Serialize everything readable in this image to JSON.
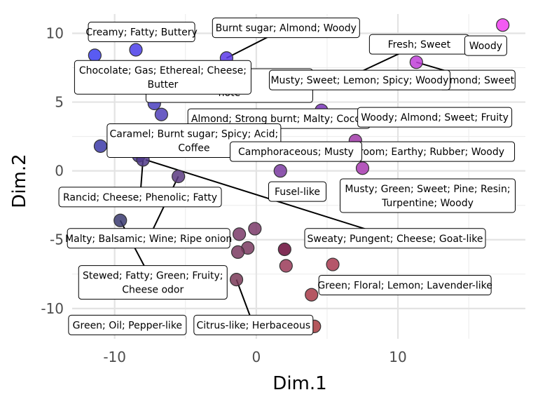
{
  "chart_data": {
    "type": "scatter",
    "title": "",
    "xlabel": "Dim.1",
    "ylabel": "Dim.2",
    "xlim": [
      -13,
      19
    ],
    "ylim": [
      -12.2,
      11.4
    ],
    "xticks": [
      -10,
      0,
      10
    ],
    "yticks": [
      -10,
      -5,
      0,
      5,
      10
    ],
    "grid": true,
    "legend": "none",
    "points": [
      {
        "x": -11.4,
        "y": 8.4,
        "color": "#3c3ef0"
      },
      {
        "x": -8.5,
        "y": 8.8,
        "color": "#4a3de8"
      },
      {
        "x": -2.1,
        "y": 8.2,
        "color": "#5a38e8"
      },
      {
        "x": 17.4,
        "y": 10.6,
        "color": "#f03ef0"
      },
      {
        "x": 11.3,
        "y": 7.9,
        "color": "#c040d8"
      },
      {
        "x": 3.0,
        "y": 6.3,
        "color": "#7a3ac8"
      },
      {
        "x": -7.2,
        "y": 4.9,
        "color": "#4a40c0"
      },
      {
        "x": -6.7,
        "y": 4.1,
        "color": "#5040b8"
      },
      {
        "x": 4.6,
        "y": 4.4,
        "color": "#7a35b8"
      },
      {
        "x": 5.1,
        "y": 4.0,
        "color": "#8a38b8"
      },
      {
        "x": 6.3,
        "y": 3.6,
        "color": "#a03ab8"
      },
      {
        "x": 7.0,
        "y": 2.2,
        "color": "#a03aa8"
      },
      {
        "x": 7.5,
        "y": 0.2,
        "color": "#a83ab0"
      },
      {
        "x": 1.7,
        "y": 0.0,
        "color": "#7a3aa0"
      },
      {
        "x": -11.0,
        "y": 1.8,
        "color": "#3c3aa8"
      },
      {
        "x": -8.3,
        "y": 1.1,
        "color": "#4a3a90"
      },
      {
        "x": -8.0,
        "y": 0.8,
        "color": "#503a88"
      },
      {
        "x": -5.5,
        "y": -0.4,
        "color": "#5a3a80"
      },
      {
        "x": -9.6,
        "y": -3.6,
        "color": "#3a3a70"
      },
      {
        "x": -1.2,
        "y": -4.6,
        "color": "#7a3a68"
      },
      {
        "x": -0.1,
        "y": -4.2,
        "color": "#7a3a68"
      },
      {
        "x": -0.6,
        "y": -5.6,
        "color": "#7a3a60"
      },
      {
        "x": -1.3,
        "y": -5.9,
        "color": "#7a3a60"
      },
      {
        "x": 2.0,
        "y": -5.7,
        "color": "#6a0a38"
      },
      {
        "x": 2.1,
        "y": -6.9,
        "color": "#9a3a58"
      },
      {
        "x": 5.4,
        "y": -6.8,
        "color": "#a83a50"
      },
      {
        "x": 3.9,
        "y": -9.0,
        "color": "#a83a48"
      },
      {
        "x": -1.4,
        "y": -7.9,
        "color": "#7a3a58"
      },
      {
        "x": 4.1,
        "y": -11.3,
        "color": "#a83a40"
      }
    ],
    "labels": [
      {
        "text": [
          "Creamy; Fatty; Buttery"
        ],
        "cx": -8.1,
        "cy": 10.1,
        "w": 152,
        "h": 28,
        "line": null
      },
      {
        "text": [
          "Burnt sugar; Almond; Woody"
        ],
        "cx": 2.1,
        "cy": 10.4,
        "w": 210,
        "h": 28,
        "line": [
          -2.1,
          8.2
        ]
      },
      {
        "text": [
          "Fresh; Sweet"
        ],
        "cx": 11.5,
        "cy": 9.2,
        "w": 142,
        "h": 28,
        "line": [
          5.9,
          6.5
        ]
      },
      {
        "text": [
          "Woody"
        ],
        "cx": 16.2,
        "cy": 9.1,
        "w": 60,
        "h": 28,
        "line": null
      },
      {
        "text": [
          "Almond; Sweet"
        ],
        "cx": 15.6,
        "cy": 6.6,
        "w": 108,
        "h": 28,
        "line": [
          11.3,
          7.9
        ]
      },
      {
        "text": [
          "Caramel",
          "note"
        ],
        "cx": -1.9,
        "cy": 6.2,
        "w": 238,
        "h": 48,
        "line": null
      },
      {
        "text": [
          "Chocolate; Gas; Ethereal; Cheese;",
          "Butter"
        ],
        "cx": -6.6,
        "cy": 6.8,
        "w": 252,
        "h": 48,
        "line": null
      },
      {
        "text": [
          "Musty; Sweet; Lemon; Spicy; Woody"
        ],
        "cx": 7.3,
        "cy": 6.6,
        "w": 258,
        "h": 28,
        "line": null
      },
      {
        "text": [
          "Almond; Strong burnt; Malty; Cocoa"
        ],
        "cx": 1.6,
        "cy": 3.8,
        "w": 260,
        "h": 28,
        "line": null
      },
      {
        "text": [
          "Woody; Almond; Sweet; Fruity"
        ],
        "cx": 12.6,
        "cy": 3.9,
        "w": 220,
        "h": 28,
        "line": null
      },
      {
        "text": [
          "Caramel; Burnt sugar; Spicy; Acid;",
          "Coffee"
        ],
        "cx": -4.4,
        "cy": 2.2,
        "w": 248,
        "h": 48,
        "line": null
      },
      {
        "text": [
          "room; Earthy; Rubber; Woody"
        ],
        "cx": 12.4,
        "cy": 1.4,
        "w": 236,
        "h": 28,
        "line": null
      },
      {
        "text": [
          "Camphoraceous; Musty"
        ],
        "cx": 2.8,
        "cy": 1.4,
        "w": 188,
        "h": 28,
        "line": null
      },
      {
        "text": [
          "Fusel-like"
        ],
        "cx": 2.9,
        "cy": -1.5,
        "w": 82,
        "h": 28,
        "line": null
      },
      {
        "text": [
          "Musty; Green; Sweet; Pine; Resin;",
          "Turpentine; Woody"
        ],
        "cx": 12.1,
        "cy": -1.8,
        "w": 250,
        "h": 48,
        "line": null
      },
      {
        "text": [
          "Rancid; Cheese; Phenolic; Fatty"
        ],
        "cx": -8.2,
        "cy": -1.9,
        "w": 232,
        "h": 28,
        "line": [
          -8.0,
          0.8
        ]
      },
      {
        "text": [
          "Sweaty; Pungent; Cheese; Goat-like"
        ],
        "cx": 9.8,
        "cy": -4.9,
        "w": 258,
        "h": 28,
        "line": [
          -7.8,
          0.8
        ]
      },
      {
        "text": [
          "Malty; Balsamic; Wine; Ripe onion"
        ],
        "cx": -7.6,
        "cy": -4.9,
        "w": 232,
        "h": 28,
        "line": [
          -5.5,
          -0.4
        ]
      },
      {
        "text": [
          "Stewed; Fatty; Green; Fruity;",
          "Cheese odor"
        ],
        "cx": -7.3,
        "cy": -8.1,
        "w": 212,
        "h": 48,
        "line": [
          -9.6,
          -3.6
        ]
      },
      {
        "text": [
          "Green; Floral; Lemon; Lavender-like"
        ],
        "cx": 10.5,
        "cy": -8.3,
        "w": 246,
        "h": 28,
        "line": null
      },
      {
        "text": [
          "Green; Oil; Pepper-like"
        ],
        "cx": -9.1,
        "cy": -11.2,
        "w": 168,
        "h": 28,
        "line": null
      },
      {
        "text": [
          "Citrus-like; Herbaceous"
        ],
        "cx": -0.2,
        "cy": -11.2,
        "w": 170,
        "h": 28,
        "line": [
          -1.4,
          -7.9
        ]
      }
    ]
  }
}
